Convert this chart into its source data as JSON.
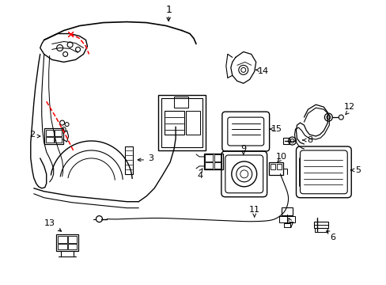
{
  "background_color": "#ffffff",
  "line_color": "#000000",
  "red_color": "#ff0000",
  "figsize": [
    4.89,
    3.6
  ],
  "dpi": 100
}
